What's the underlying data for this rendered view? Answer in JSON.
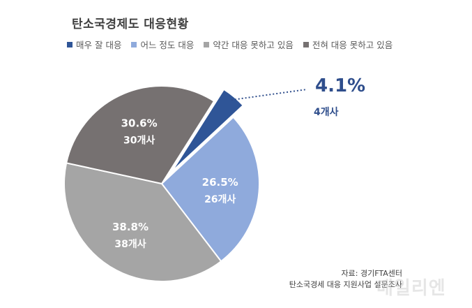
{
  "chart_data": {
    "type": "pie",
    "title": "탄소국경제도 대응현황",
    "slices": [
      {
        "name": "매우 잘 대응",
        "value": 4.1,
        "pct_label": "4.1%",
        "count_label": "4개사",
        "color": "#2f5597"
      },
      {
        "name": "어느 정도 대응",
        "value": 26.5,
        "pct_label": "26.5%",
        "count_label": "26개사",
        "color": "#8faadc"
      },
      {
        "name": "약간 대응 못하고 있음",
        "value": 38.8,
        "pct_label": "38.8%",
        "count_label": "38개사",
        "color": "#a5a5a5"
      },
      {
        "name": "전혀 대응 못하고 있음",
        "value": 30.6,
        "pct_label": "30.6%",
        "count_label": "30개사",
        "color": "#767171"
      }
    ],
    "legend_position": "top"
  },
  "source": {
    "line1": "자료: 경기FTA센터",
    "line2": "탄소국경세 대응 지원사업 설문조사"
  },
  "watermark": "매일리엔"
}
